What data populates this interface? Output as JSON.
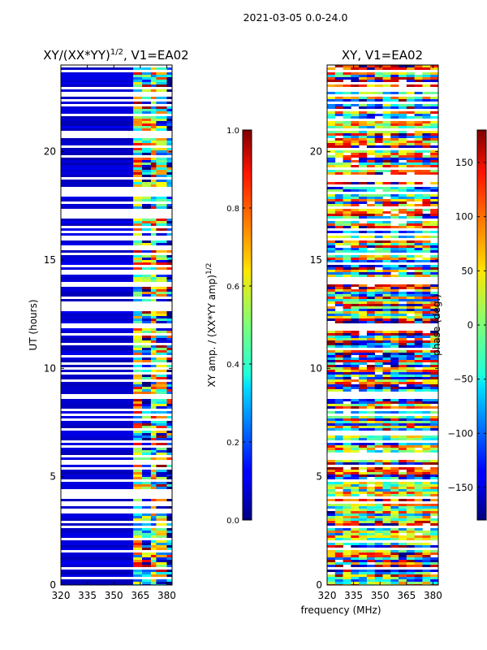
{
  "suptitle": "2021-03-05 0.0-24.0",
  "chart_data": [
    {
      "type": "heatmap",
      "title": "XY/(XX*YY)^1/2, V1=EA02",
      "title_main": "XY/(XX*YY)",
      "title_exp": "1/2",
      "title_tail": ", V1=EA02",
      "xlabel": "",
      "ylabel": "UT (hours)",
      "xlim": [
        320,
        383
      ],
      "ylim": [
        0,
        24
      ],
      "xticks": [
        320,
        335,
        350,
        365,
        380
      ],
      "yticks": [
        0,
        5,
        10,
        15,
        20
      ],
      "colormap": "jet",
      "colorbar": {
        "label": "XY amp. / (XX*YY amp)^1/2",
        "label_main": "XY amp. / (XX*YY amp)",
        "label_exp": "1/2",
        "vmin": 0.0,
        "vmax": 1.0,
        "ticks": [
          "0.0",
          "0.2",
          "0.4",
          "0.6",
          "0.8",
          "1.0"
        ],
        "tick_values": [
          0.0,
          0.2,
          0.4,
          0.6,
          0.8,
          1.0
        ]
      },
      "bands": [
        {
          "x0": 320,
          "x1": 361,
          "value": 0.05
        },
        {
          "x0": 361,
          "x1": 366,
          "value": 0.55
        },
        {
          "x0": 366,
          "x1": 371,
          "value": 0.3
        },
        {
          "x0": 371,
          "x1": 374,
          "value": 0.5
        },
        {
          "x0": 374,
          "x1": 380,
          "value": 0.4
        },
        {
          "x0": 380,
          "x1": 383,
          "value": 0.1
        }
      ]
    },
    {
      "type": "heatmap",
      "title": "XY, V1=EA02",
      "xlabel": "frequency (MHz)",
      "ylabel": "",
      "xlim": [
        320,
        383
      ],
      "ylim": [
        0,
        24
      ],
      "xticks": [
        320,
        335,
        350,
        365,
        380
      ],
      "yticks": [
        0,
        5,
        10,
        15,
        20
      ],
      "colormap": "jet",
      "colorbar": {
        "label": "phase (deg.)",
        "vmin": -180,
        "vmax": 180,
        "ticks": [
          "−150",
          "−100",
          "−50",
          "0",
          "50",
          "100",
          "150"
        ],
        "tick_values": [
          -150,
          -100,
          -50,
          0,
          50,
          100,
          150
        ]
      }
    }
  ]
}
